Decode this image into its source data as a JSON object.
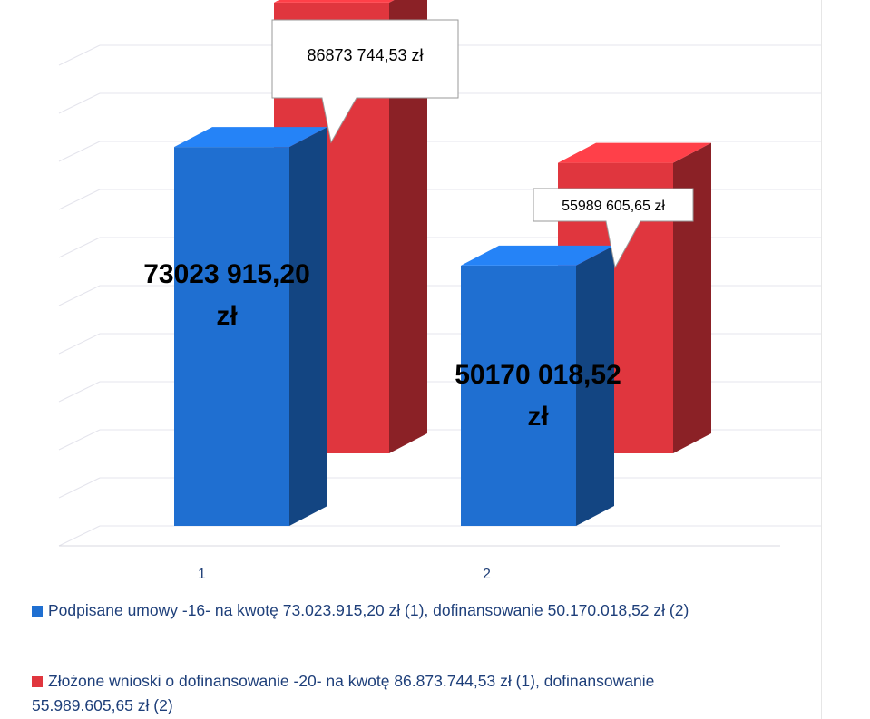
{
  "chart_data": {
    "type": "bar",
    "categories": [
      "1",
      "2"
    ],
    "series": [
      {
        "name": "Podpisane umowy -16-  na kwotę 73.023.915,20 zł (1), dofinansowanie 50.170.018,52 zł (2)",
        "values": [
          73023915.2,
          50170018.52
        ],
        "labels": [
          "73023 915,20",
          "50170 018,52"
        ],
        "label_unit": "zł",
        "color": "#1f6fd1"
      },
      {
        "name": "Złożone wnioski o dofinansowanie -20- na kwotę 86.873.744,53  zł (1), dofinansowanie 55.989.605,65 zł (2)",
        "values": [
          86873744.53,
          55989605.65
        ],
        "labels": [
          "86873 744,53 zł",
          "55989 605,65 zł"
        ],
        "color": "#e0363e"
      }
    ],
    "ylim": [
      0,
      90000000
    ],
    "grid": true,
    "legend_position": "bottom"
  },
  "legend": {
    "line1": "Podpisane umowy -16-  na kwotę 73.023.915,20 zł (1), dofinansowanie 50.170.018,52 zł (2)",
    "line2a": "Złożone wnioski o dofinansowanie -20- na kwotę 86.873.744,53  zł (1), dofinansowanie",
    "line2b": "55.989.605,65 zł (2)"
  }
}
